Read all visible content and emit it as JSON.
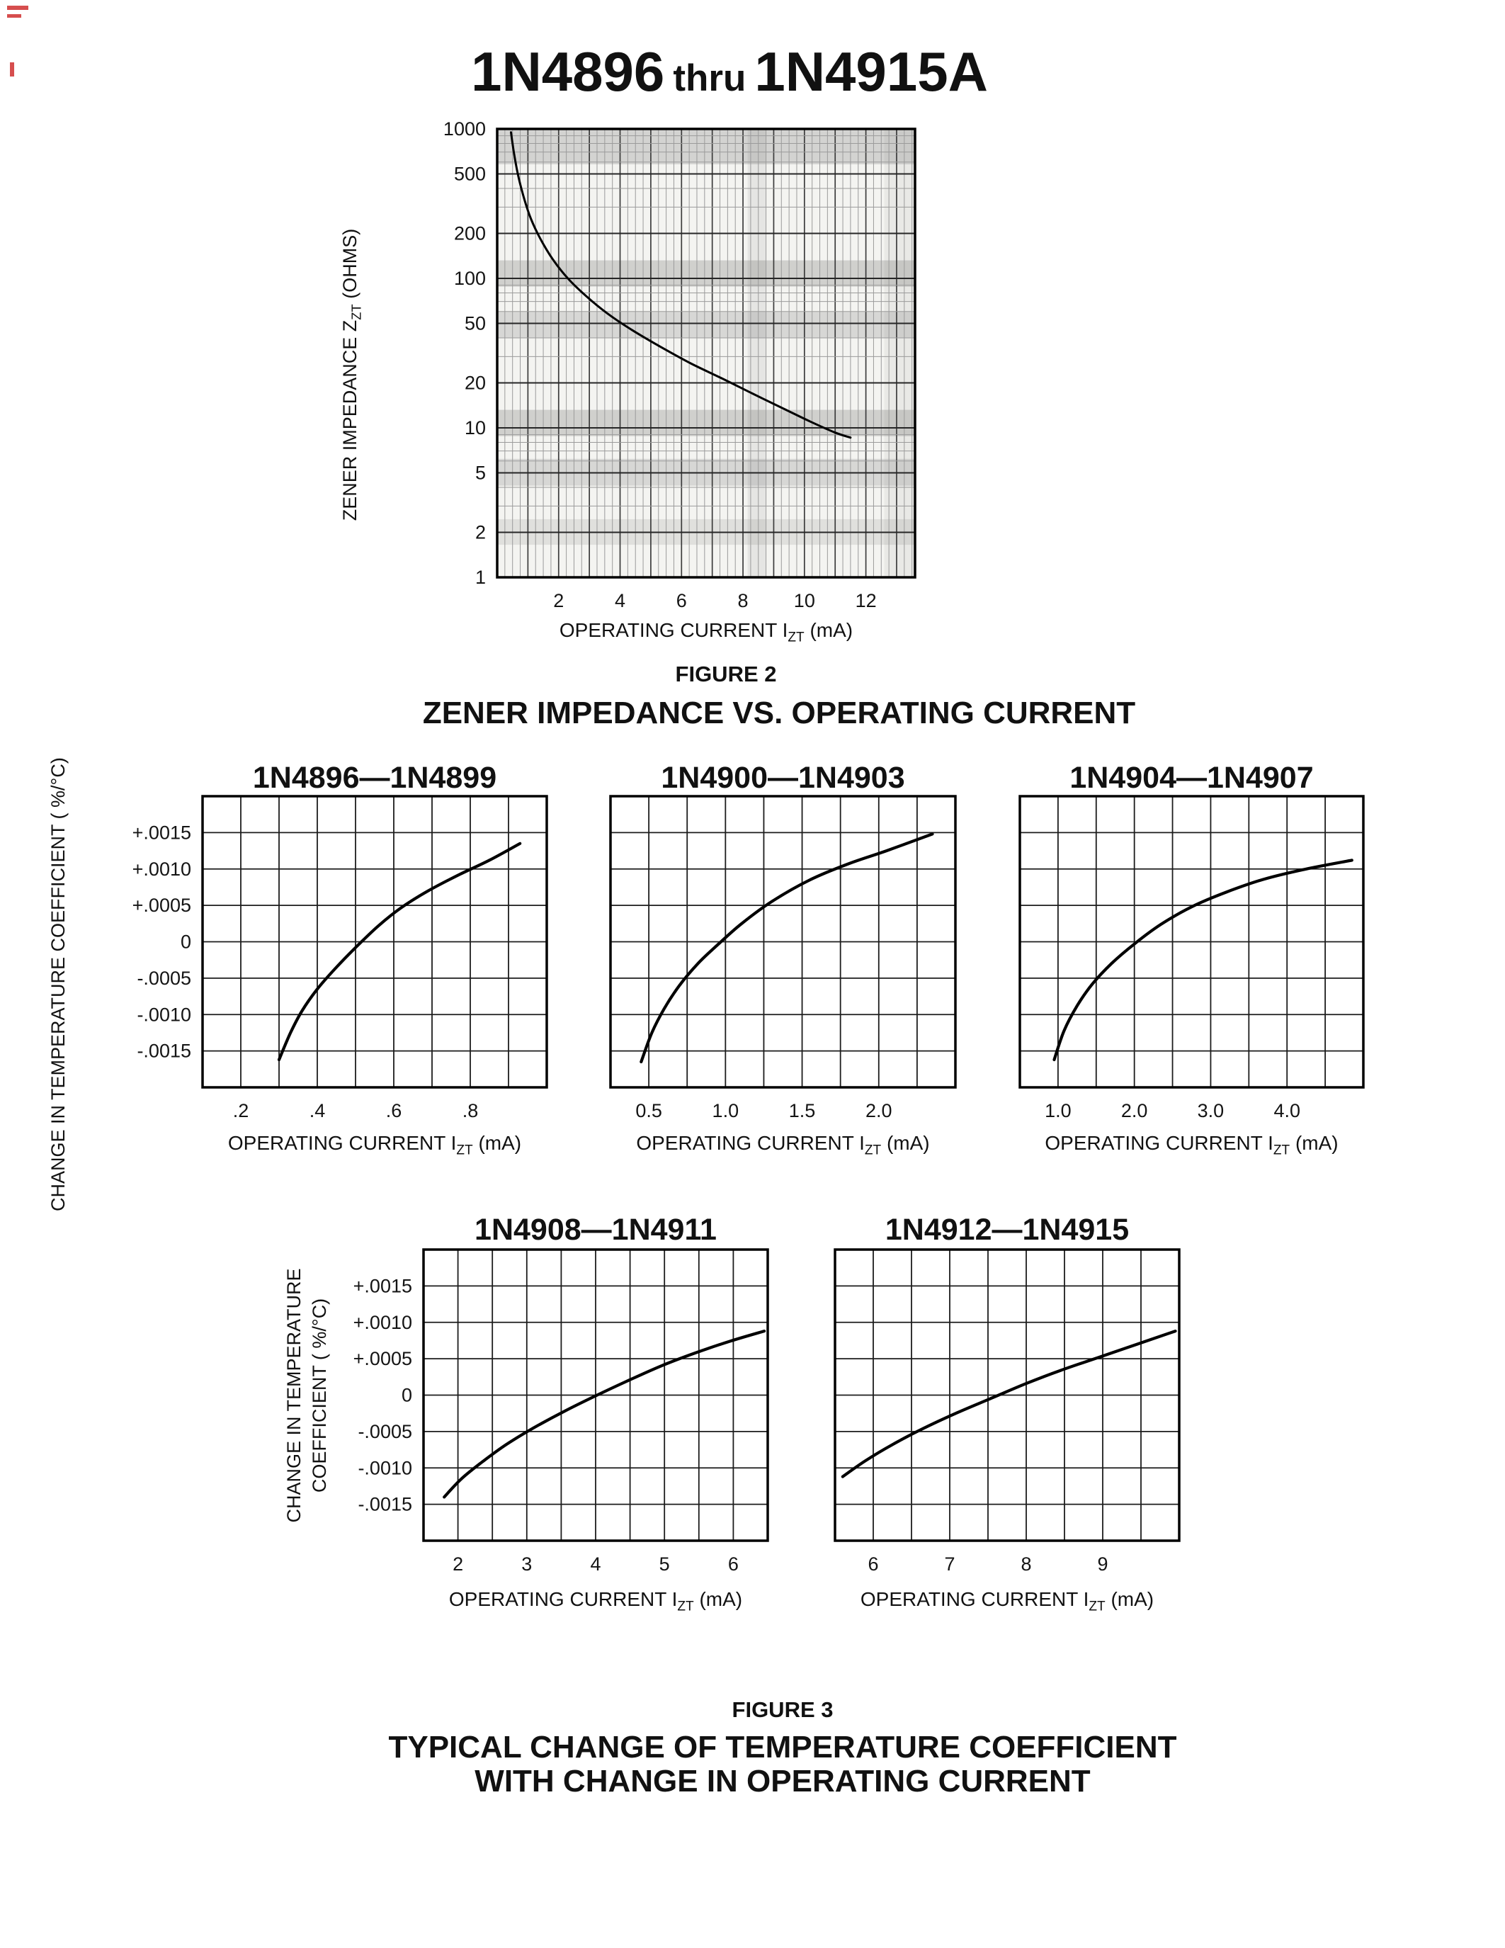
{
  "header": {
    "part_start": "1N4896",
    "thru": "thru",
    "part_end": "1N4915A"
  },
  "labels": {
    "op_current": "OPERATING CURRENT I",
    "zt": "ZT",
    "ma": " (mA)"
  },
  "figure2": {
    "caption": "FIGURE 2",
    "title": "ZENER IMPEDANCE VS. OPERATING CURRENT",
    "ylabel_pre": "ZENER IMPEDANCE Z",
    "ylabel_unit": " (OHMS)"
  },
  "figure3": {
    "caption": "FIGURE 3",
    "title_line1": "TYPICAL CHANGE OF TEMPERATURE COEFFICIENT",
    "title_line2": "WITH CHANGE IN OPERATING CURRENT",
    "row_label": "CHANGE IN TEMPERATURE COEFFICIENT ( %/°C)",
    "row_label_line1": "CHANGE IN TEMPERATURE",
    "row_label_line2": "COEFFICIENT ( %/°C)"
  },
  "chart_data": [
    {
      "id": "fig2",
      "type": "line",
      "title": "ZENER IMPEDANCE VS. OPERATING CURRENT",
      "xlabel": "OPERATING CURRENT IZT (mA)",
      "ylabel": "ZENER IMPEDANCE ZZT (OHMS)",
      "x_scale": "linear",
      "y_scale": "log",
      "xlim": [
        0,
        13.6
      ],
      "ylim": [
        1,
        1000
      ],
      "x_ticks": [
        2,
        4,
        6,
        8,
        10,
        12
      ],
      "x_tick_labels": [
        "2",
        "4",
        "6",
        "8",
        "10",
        "12"
      ],
      "y_ticks": [
        1000,
        500,
        200,
        100,
        50,
        20,
        10,
        5,
        2,
        1
      ],
      "y_tick_labels": [
        "1000",
        "500",
        "200",
        "100",
        "50",
        "20",
        "10",
        "5",
        "2",
        "1"
      ],
      "points": [
        [
          0.45,
          950
        ],
        [
          0.55,
          680
        ],
        [
          0.7,
          470
        ],
        [
          0.9,
          330
        ],
        [
          1.1,
          250
        ],
        [
          1.4,
          185
        ],
        [
          1.8,
          135
        ],
        [
          2.3,
          100
        ],
        [
          2.9,
          76
        ],
        [
          3.6,
          58
        ],
        [
          4.4,
          45
        ],
        [
          5.3,
          35
        ],
        [
          6.3,
          27
        ],
        [
          7.3,
          21.5
        ],
        [
          8.3,
          17
        ],
        [
          9.3,
          13.5
        ],
        [
          10.2,
          11
        ],
        [
          11.0,
          9.3
        ],
        [
          11.5,
          8.6
        ]
      ]
    },
    {
      "id": "tc1",
      "type": "line",
      "title": "1N4896—1N4899",
      "xlabel": "OPERATING CURRENT IZT (mA)",
      "ylabel": "CHANGE IN TEMPERATURE COEFFICIENT ( %/°C)",
      "x_scale": "linear",
      "y_scale": "linear",
      "xlim": [
        0.1,
        1.0
      ],
      "x_step": 0.1,
      "ylim": [
        -0.002,
        0.002
      ],
      "y_step": 0.0005,
      "x_ticks": [
        0.2,
        0.4,
        0.6,
        0.8
      ],
      "x_tick_labels": [
        ".2",
        ".4",
        ".6",
        ".8"
      ],
      "y_ticks": [
        0.0015,
        0.001,
        0.0005,
        0,
        -0.0005,
        -0.001,
        -0.0015
      ],
      "y_tick_labels": [
        "+.0015",
        "+.0010",
        "+.0005",
        "0",
        "-.0005",
        "-.0010",
        "-.0015"
      ],
      "points": [
        [
          0.3,
          -0.00162
        ],
        [
          0.33,
          -0.00125
        ],
        [
          0.36,
          -0.00095
        ],
        [
          0.4,
          -0.00065
        ],
        [
          0.45,
          -0.00035
        ],
        [
          0.5,
          -8e-05
        ],
        [
          0.56,
          0.00022
        ],
        [
          0.62,
          0.00047
        ],
        [
          0.69,
          0.0007
        ],
        [
          0.77,
          0.00092
        ],
        [
          0.85,
          0.00112
        ],
        [
          0.93,
          0.00135
        ]
      ]
    },
    {
      "id": "tc2",
      "type": "line",
      "title": "1N4900—1N4903",
      "xlabel": "OPERATING CURRENT IZT (mA)",
      "x_scale": "linear",
      "y_scale": "linear",
      "xlim": [
        0.25,
        2.5
      ],
      "x_step": 0.25,
      "ylim": [
        -0.002,
        0.002
      ],
      "y_step": 0.0005,
      "x_ticks": [
        0.5,
        1.0,
        1.5,
        2.0
      ],
      "x_tick_labels": [
        "0.5",
        "1.0",
        "1.5",
        "2.0"
      ],
      "points": [
        [
          0.45,
          -0.00165
        ],
        [
          0.52,
          -0.00125
        ],
        [
          0.6,
          -0.00092
        ],
        [
          0.7,
          -0.0006
        ],
        [
          0.82,
          -0.0003
        ],
        [
          0.95,
          -4e-05
        ],
        [
          1.1,
          0.00024
        ],
        [
          1.3,
          0.00055
        ],
        [
          1.55,
          0.00085
        ],
        [
          1.8,
          0.00107
        ],
        [
          2.05,
          0.00125
        ],
        [
          2.35,
          0.00148
        ]
      ]
    },
    {
      "id": "tc3",
      "type": "line",
      "title": "1N4904—1N4907",
      "xlabel": "OPERATING CURRENT IZT (mA)",
      "x_scale": "linear",
      "y_scale": "linear",
      "xlim": [
        0.5,
        5.0
      ],
      "x_step": 0.5,
      "ylim": [
        -0.002,
        0.002
      ],
      "y_step": 0.0005,
      "x_ticks": [
        1.0,
        2.0,
        3.0,
        4.0
      ],
      "x_tick_labels": [
        "1.0",
        "2.0",
        "3.0",
        "4.0"
      ],
      "points": [
        [
          0.95,
          -0.00162
        ],
        [
          1.08,
          -0.00122
        ],
        [
          1.25,
          -0.00088
        ],
        [
          1.45,
          -0.00058
        ],
        [
          1.7,
          -0.0003
        ],
        [
          2.0,
          -3e-05
        ],
        [
          2.35,
          0.00024
        ],
        [
          2.75,
          0.00048
        ],
        [
          3.2,
          0.00068
        ],
        [
          3.7,
          0.00086
        ],
        [
          4.25,
          0.001
        ],
        [
          4.85,
          0.00112
        ]
      ]
    },
    {
      "id": "tc4",
      "type": "line",
      "title": "1N4908—1N4911",
      "xlabel": "OPERATING CURRENT IZT (mA)",
      "ylabel": "CHANGE IN TEMPERATURE COEFFICIENT ( %/°C)",
      "x_scale": "linear",
      "y_scale": "linear",
      "xlim": [
        1.5,
        6.5
      ],
      "x_step": 0.5,
      "ylim": [
        -0.002,
        0.002
      ],
      "y_step": 0.0005,
      "x_ticks": [
        2,
        3,
        4,
        5,
        6
      ],
      "x_tick_labels": [
        "2",
        "3",
        "4",
        "5",
        "6"
      ],
      "y_ticks": [
        0.0015,
        0.001,
        0.0005,
        0,
        -0.0005,
        -0.001,
        -0.0015
      ],
      "y_tick_labels": [
        "+.0015",
        "+.0010",
        "+.0005",
        "0",
        "-.0005",
        "-.0010",
        "-.0015"
      ],
      "points": [
        [
          1.8,
          -0.0014
        ],
        [
          2.05,
          -0.00115
        ],
        [
          2.35,
          -0.00092
        ],
        [
          2.7,
          -0.00068
        ],
        [
          3.1,
          -0.00045
        ],
        [
          3.55,
          -0.00022
        ],
        [
          4.0,
          -1e-05
        ],
        [
          4.45,
          0.00019
        ],
        [
          4.95,
          0.0004
        ],
        [
          5.45,
          0.00058
        ],
        [
          5.95,
          0.00074
        ],
        [
          6.45,
          0.00088
        ]
      ]
    },
    {
      "id": "tc5",
      "type": "line",
      "title": "1N4912—1N4915",
      "xlabel": "OPERATING CURRENT IZT (mA)",
      "x_scale": "linear",
      "y_scale": "linear",
      "xlim": [
        5.5,
        10.0
      ],
      "x_step": 0.5,
      "ylim": [
        -0.002,
        0.002
      ],
      "y_step": 0.0005,
      "x_ticks": [
        6,
        7,
        8,
        9
      ],
      "x_tick_labels": [
        "6",
        "7",
        "8",
        "9"
      ],
      "points": [
        [
          5.6,
          -0.00112
        ],
        [
          5.9,
          -0.0009
        ],
        [
          6.25,
          -0.00068
        ],
        [
          6.65,
          -0.00046
        ],
        [
          7.1,
          -0.00024
        ],
        [
          7.55,
          -4e-05
        ],
        [
          8.0,
          0.00016
        ],
        [
          8.45,
          0.00034
        ],
        [
          8.95,
          0.00052
        ],
        [
          9.45,
          0.0007
        ],
        [
          9.95,
          0.00088
        ]
      ]
    }
  ]
}
